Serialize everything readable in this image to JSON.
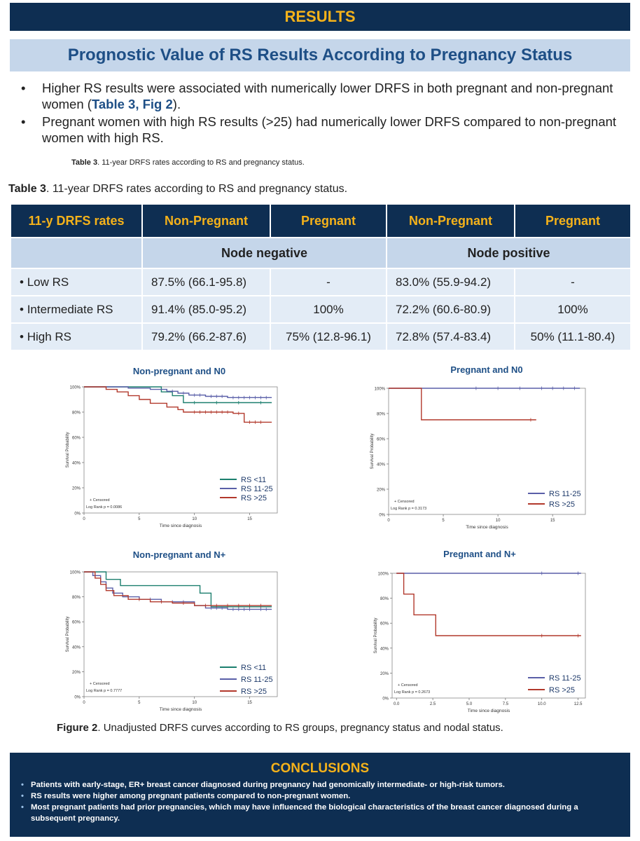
{
  "header": {
    "results": "RESULTS",
    "subtitle": "Prognostic Value of RS Results According to Pregnancy Status"
  },
  "bullets": {
    "b1_pre": "Higher RS results were associated with numerically lower DRFS in both pregnant and non-pregnant women (",
    "b1_ref": "Table 3, Fig 2",
    "b1_post": ").",
    "b2": "Pregnant women with high RS results (>25) had numerically lower DRFS compared to non-pregnant women with high RS."
  },
  "caption_small": {
    "label": "Table 3",
    "text": ". 11-year DRFS rates according to RS and pregnancy status."
  },
  "caption_table": {
    "label": "Table 3",
    "text": ". 11-year DRFS rates according to RS and pregnancy status."
  },
  "table": {
    "headers": [
      "11-y DRFS rates",
      "Non-Pregnant",
      "Pregnant",
      "Non-Pregnant",
      "Pregnant"
    ],
    "groups": [
      "Node negative",
      "Node positive"
    ],
    "rows": [
      {
        "label": "Low RS",
        "cells": [
          "87.5% (66.1-95.8)",
          "-",
          "83.0% (55.9-94.2)",
          "-"
        ]
      },
      {
        "label": "Intermediate RS",
        "cells": [
          "91.4% (85.0-95.2)",
          "100%",
          "72.2% (60.6-80.9)",
          "100%"
        ]
      },
      {
        "label": "High RS",
        "cells": [
          "79.2% (66.2-87.6)",
          "75% (12.8-96.1)",
          "72.8% (57.4-83.4)",
          "50% (11.1-80.4)"
        ]
      }
    ]
  },
  "colors": {
    "navy": "#0e2e52",
    "gold": "#f5b21a",
    "light_blue": "#c5d6ea",
    "rs_low": "#1c7f6e",
    "rs_mid": "#5a5fa8",
    "rs_high": "#b2392c"
  },
  "chart_data": [
    {
      "type": "line",
      "title": "Non-pregnant and N0",
      "xlabel": "Time since diagnosis",
      "ylabel": "Survival Probability",
      "xlim": [
        0,
        17.5
      ],
      "ylim": [
        0,
        1
      ],
      "x_ticks": [
        "0",
        "5",
        "10",
        "15"
      ],
      "y_ticks": [
        "0%",
        "20%",
        "40%",
        "60%",
        "80%",
        "100%"
      ],
      "legend_position": "bottom-right",
      "censored_label": "+ Censored",
      "logrank": "Log Rank p = 0.0086",
      "series": [
        {
          "name": "RS <11",
          "color": "#1c7f6e",
          "points": [
            [
              0,
              1
            ],
            [
              7,
              1
            ],
            [
              7,
              0.96
            ],
            [
              8,
              0.96
            ],
            [
              8,
              0.93
            ],
            [
              9,
              0.93
            ],
            [
              9,
              0.875
            ],
            [
              17,
              0.875
            ]
          ],
          "censor": [
            [
              10,
              0.875
            ],
            [
              12,
              0.875
            ],
            [
              14,
              0.875
            ],
            [
              16,
              0.875
            ]
          ]
        },
        {
          "name": "RS 11-25",
          "color": "#5a5fa8",
          "points": [
            [
              0,
              1
            ],
            [
              4,
              1
            ],
            [
              4,
              0.99
            ],
            [
              6,
              0.99
            ],
            [
              6,
              0.98
            ],
            [
              7.5,
              0.98
            ],
            [
              7.5,
              0.965
            ],
            [
              8.5,
              0.965
            ],
            [
              8.5,
              0.95
            ],
            [
              9.5,
              0.95
            ],
            [
              9.5,
              0.935
            ],
            [
              11,
              0.935
            ],
            [
              11,
              0.925
            ],
            [
              13,
              0.925
            ],
            [
              13,
              0.915
            ],
            [
              17,
              0.915
            ]
          ],
          "censor": [
            [
              8,
              0.965
            ],
            [
              9,
              0.95
            ],
            [
              10,
              0.935
            ],
            [
              10.5,
              0.935
            ],
            [
              11.5,
              0.925
            ],
            [
              12,
              0.925
            ],
            [
              12.5,
              0.925
            ],
            [
              13.5,
              0.915
            ],
            [
              14,
              0.915
            ],
            [
              14.5,
              0.915
            ],
            [
              15,
              0.915
            ],
            [
              15.5,
              0.915
            ],
            [
              16,
              0.915
            ],
            [
              16.5,
              0.915
            ]
          ]
        },
        {
          "name": "RS >25",
          "color": "#b2392c",
          "points": [
            [
              0,
              1
            ],
            [
              2,
              1
            ],
            [
              2,
              0.98
            ],
            [
              3,
              0.98
            ],
            [
              3,
              0.96
            ],
            [
              4,
              0.96
            ],
            [
              4,
              0.93
            ],
            [
              5,
              0.93
            ],
            [
              5,
              0.9
            ],
            [
              6,
              0.9
            ],
            [
              6,
              0.87
            ],
            [
              7.5,
              0.87
            ],
            [
              7.5,
              0.84
            ],
            [
              8.5,
              0.84
            ],
            [
              8.5,
              0.82
            ],
            [
              9,
              0.82
            ],
            [
              9,
              0.8
            ],
            [
              13.5,
              0.8
            ],
            [
              13.5,
              0.79
            ],
            [
              14.5,
              0.79
            ],
            [
              14.5,
              0.72
            ],
            [
              17,
              0.72
            ]
          ],
          "censor": [
            [
              10,
              0.8
            ],
            [
              10.5,
              0.8
            ],
            [
              11,
              0.8
            ],
            [
              11.5,
              0.8
            ],
            [
              12,
              0.8
            ],
            [
              12.5,
              0.8
            ],
            [
              13,
              0.8
            ],
            [
              14,
              0.79
            ],
            [
              15,
              0.72
            ],
            [
              15.5,
              0.72
            ],
            [
              16,
              0.72
            ]
          ]
        }
      ]
    },
    {
      "type": "line",
      "title": "Pregnant and N0",
      "xlabel": "Time since diagnosis",
      "ylabel": "Survival Probability",
      "xlim": [
        0,
        18
      ],
      "ylim": [
        0,
        1
      ],
      "x_ticks": [
        "0",
        "5",
        "10",
        "15"
      ],
      "y_ticks": [
        "0%",
        "20%",
        "40%",
        "60%",
        "80%",
        "100%"
      ],
      "legend_position": "bottom-right",
      "censored_label": "+ Censored",
      "logrank": "Log Rank p = 0.3173",
      "series": [
        {
          "name": "RS 11-25",
          "color": "#5a5fa8",
          "points": [
            [
              0,
              1
            ],
            [
              17.5,
              1
            ]
          ],
          "censor": [
            [
              8,
              1
            ],
            [
              10,
              1
            ],
            [
              12,
              1
            ],
            [
              14,
              1
            ],
            [
              15,
              1
            ],
            [
              16,
              1
            ],
            [
              17,
              1
            ]
          ]
        },
        {
          "name": "RS >25",
          "color": "#b2392c",
          "points": [
            [
              0,
              1
            ],
            [
              3,
              1
            ],
            [
              3,
              0.75
            ],
            [
              13.5,
              0.75
            ]
          ],
          "censor": [
            [
              13,
              0.75
            ]
          ]
        }
      ]
    },
    {
      "type": "line",
      "title": "Non-pregnant and N+",
      "xlabel": "Time since diagnosis",
      "ylabel": "Survival Probability",
      "xlim": [
        0,
        17.5
      ],
      "ylim": [
        0,
        1
      ],
      "x_ticks": [
        "0",
        "5",
        "10",
        "15"
      ],
      "y_ticks": [
        "0%",
        "20%",
        "40%",
        "60%",
        "80%",
        "100%"
      ],
      "legend_position": "bottom-right",
      "censored_label": "+ Censored",
      "logrank": "Log Rank p = 0.7777",
      "series": [
        {
          "name": "RS <11",
          "color": "#1c7f6e",
          "points": [
            [
              0,
              1
            ],
            [
              2,
              1
            ],
            [
              2,
              0.94
            ],
            [
              3.3,
              0.94
            ],
            [
              3.3,
              0.89
            ],
            [
              10.5,
              0.89
            ],
            [
              10.5,
              0.83
            ],
            [
              11.5,
              0.83
            ],
            [
              11.5,
              0.72
            ],
            [
              17,
              0.72
            ]
          ],
          "censor": [
            [
              12,
              0.72
            ],
            [
              13,
              0.72
            ],
            [
              14,
              0.72
            ],
            [
              15,
              0.72
            ],
            [
              16,
              0.72
            ]
          ]
        },
        {
          "name": "RS 11-25",
          "color": "#5a5fa8",
          "points": [
            [
              0,
              1
            ],
            [
              0.8,
              1
            ],
            [
              0.8,
              0.97
            ],
            [
              1.5,
              0.97
            ],
            [
              1.5,
              0.92
            ],
            [
              2,
              0.92
            ],
            [
              2,
              0.87
            ],
            [
              2.6,
              0.87
            ],
            [
              2.6,
              0.83
            ],
            [
              3.5,
              0.83
            ],
            [
              3.5,
              0.8
            ],
            [
              5,
              0.8
            ],
            [
              5,
              0.78
            ],
            [
              7,
              0.78
            ],
            [
              7,
              0.76
            ],
            [
              10,
              0.76
            ],
            [
              10,
              0.73
            ],
            [
              11,
              0.73
            ],
            [
              11,
              0.71
            ],
            [
              13,
              0.71
            ],
            [
              13,
              0.7
            ],
            [
              17,
              0.7
            ]
          ],
          "censor": [
            [
              6,
              0.78
            ],
            [
              8,
              0.76
            ],
            [
              9,
              0.76
            ],
            [
              11.5,
              0.71
            ],
            [
              12,
              0.71
            ],
            [
              12.5,
              0.71
            ],
            [
              13.5,
              0.7
            ],
            [
              14,
              0.7
            ],
            [
              14.5,
              0.7
            ],
            [
              15,
              0.7
            ],
            [
              16,
              0.7
            ],
            [
              16.5,
              0.7
            ]
          ]
        },
        {
          "name": "RS >25",
          "color": "#b2392c",
          "points": [
            [
              0,
              1
            ],
            [
              1,
              1
            ],
            [
              1,
              0.95
            ],
            [
              1.5,
              0.95
            ],
            [
              1.5,
              0.9
            ],
            [
              2,
              0.9
            ],
            [
              2,
              0.85
            ],
            [
              2.7,
              0.85
            ],
            [
              2.7,
              0.81
            ],
            [
              4,
              0.81
            ],
            [
              4,
              0.78
            ],
            [
              6,
              0.78
            ],
            [
              6,
              0.76
            ],
            [
              8,
              0.76
            ],
            [
              8,
              0.75
            ],
            [
              10,
              0.75
            ],
            [
              10,
              0.73
            ],
            [
              17,
              0.73
            ]
          ],
          "censor": [
            [
              5,
              0.78
            ],
            [
              7,
              0.76
            ],
            [
              9,
              0.75
            ],
            [
              11,
              0.73
            ],
            [
              12,
              0.73
            ],
            [
              13,
              0.73
            ],
            [
              14,
              0.73
            ],
            [
              15,
              0.73
            ],
            [
              16,
              0.73
            ]
          ]
        }
      ]
    },
    {
      "type": "line",
      "title": "Pregnant and N+",
      "xlabel": "Time since diagnosis",
      "ylabel": "Survival Probability",
      "xlim": [
        -0.3,
        13
      ],
      "ylim": [
        0,
        1
      ],
      "x_ticks": [
        "0.0",
        "2.5",
        "5.0",
        "7.5",
        "10.0",
        "12.5"
      ],
      "y_ticks": [
        "0%",
        "20%",
        "40%",
        "60%",
        "80%",
        "100%"
      ],
      "legend_position": "bottom-right",
      "censored_label": "+ Censored",
      "logrank": "Log Rank p = 0.2673",
      "series": [
        {
          "name": "RS 11-25",
          "color": "#5a5fa8",
          "points": [
            [
              0,
              1
            ],
            [
              12.7,
              1
            ]
          ],
          "censor": [
            [
              10,
              1
            ],
            [
              12.5,
              1
            ]
          ]
        },
        {
          "name": "RS >25",
          "color": "#b2392c",
          "points": [
            [
              0,
              1
            ],
            [
              0.5,
              1
            ],
            [
              0.5,
              0.833
            ],
            [
              1.2,
              0.833
            ],
            [
              1.2,
              0.667
            ],
            [
              2.7,
              0.667
            ],
            [
              2.7,
              0.5
            ],
            [
              12.7,
              0.5
            ]
          ],
          "censor": [
            [
              10,
              0.5
            ],
            [
              12.5,
              0.5
            ]
          ]
        }
      ]
    }
  ],
  "figure_caption": {
    "label": "Figure 2",
    "text": ". Unadjusted DRFS curves according to RS groups, pregnancy status and nodal status."
  },
  "conclusions": {
    "title": "CONCLUSIONS",
    "items": [
      "Patients with early-stage, ER+ breast cancer diagnosed during pregnancy had genomically intermediate- or high-risk tumors.",
      "RS results were higher among pregnant patients compared to non-pregnant women.",
      "Most pregnant patients had prior pregnancies, which may have influenced the biological characteristics of the breast cancer diagnosed during a subsequent pregnancy."
    ]
  }
}
